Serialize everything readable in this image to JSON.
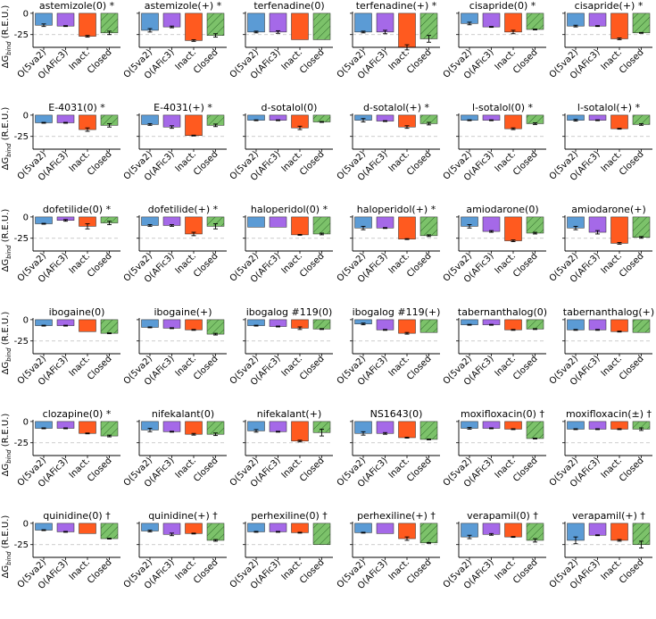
{
  "figure": {
    "ylabel_text": "ΔG",
    "ylabel_sub": "bind",
    "ylabel_units": " (R.E.U.)",
    "yticks": [
      "0",
      "-25"
    ],
    "reference_line_value": -25
  },
  "colors": {
    "O(5va2)": "#5b9bd5",
    "O(AFic3)": "#a569e8",
    "Inact.": "#ff5a1f",
    "Closed": "#7cc26a",
    "hatch": "#2f6a2a",
    "errorbar": "#000000",
    "refline": "#bdbdbd"
  },
  "chart_data": {
    "type": "bar",
    "categories": [
      "O(5va2)",
      "O(AFic3)",
      "Inact.",
      "Closed"
    ],
    "ylim": [
      -40,
      2
    ],
    "yticks": [
      0,
      -25
    ],
    "panels": [
      {
        "title": "astemizole(0) *",
        "values": [
          -14,
          -15,
          -27,
          -23
        ],
        "errors": [
          1.5,
          0.5,
          1,
          2
        ]
      },
      {
        "title": "astemizole(+) *",
        "values": [
          -20,
          -16,
          -32,
          -26
        ],
        "errors": [
          2,
          1,
          1,
          2
        ]
      },
      {
        "title": "terfenadine(0)",
        "values": [
          -22,
          -22,
          -31,
          -31
        ],
        "errors": [
          1,
          1.5,
          0,
          0
        ]
      },
      {
        "title": "terfenadine(+) *",
        "values": [
          -22,
          -22,
          -40,
          -30
        ],
        "errors": [
          1,
          2,
          3,
          4
        ]
      },
      {
        "title": "cisapride(0) *",
        "values": [
          -12,
          -16,
          -22,
          -19
        ],
        "errors": [
          1.5,
          0.5,
          2,
          0.5
        ]
      },
      {
        "title": "cisapride(+) *",
        "values": [
          -15,
          -15,
          -30,
          -23
        ],
        "errors": [
          1,
          0.5,
          1,
          0.5
        ]
      },
      {
        "title": "E-4031(0) *",
        "values": [
          -9,
          -9,
          -17,
          -12
        ],
        "errors": [
          0.5,
          0.5,
          2,
          2
        ]
      },
      {
        "title": "E-4031(+) *",
        "values": [
          -11,
          -14,
          -24,
          -12
        ],
        "errors": [
          1,
          1.5,
          0.5,
          1.5
        ]
      },
      {
        "title": "d-sotalol(0)",
        "values": [
          -6,
          -6,
          -15,
          -8
        ],
        "errors": [
          0.5,
          0.5,
          2,
          0.5
        ]
      },
      {
        "title": "d-sotalol(+) *",
        "values": [
          -6,
          -7,
          -14,
          -10
        ],
        "errors": [
          2,
          0.5,
          1.5,
          1.5
        ]
      },
      {
        "title": "l-sotalol(0) *",
        "values": [
          -6,
          -6,
          -16,
          -10
        ],
        "errors": [
          0.5,
          0.5,
          1,
          1
        ]
      },
      {
        "title": "l-sotalol(+) *",
        "values": [
          -6,
          -6,
          -16,
          -11
        ],
        "errors": [
          1,
          0.5,
          0.5,
          1
        ]
      },
      {
        "title": "dofetilide(0) *",
        "values": [
          -8,
          -4,
          -11,
          -7
        ],
        "errors": [
          0.5,
          1,
          3,
          2
        ]
      },
      {
        "title": "dofetilide(+) *",
        "values": [
          -10,
          -10,
          -20,
          -11
        ],
        "errors": [
          1,
          1,
          2,
          3
        ]
      },
      {
        "title": "haloperidol(0) *",
        "values": [
          -12,
          -12,
          -21,
          -20
        ],
        "errors": [
          0,
          0,
          0.5,
          1
        ]
      },
      {
        "title": "haloperidol(+) *",
        "values": [
          -13,
          -13,
          -26,
          -22
        ],
        "errors": [
          2,
          0.5,
          0.5,
          1
        ]
      },
      {
        "title": "amiodarone(0)",
        "values": [
          -11,
          -17,
          -28,
          -19
        ],
        "errors": [
          2,
          1,
          1,
          1
        ]
      },
      {
        "title": "amiodarone(+)",
        "values": [
          -13,
          -18,
          -31,
          -24
        ],
        "errors": [
          2,
          2,
          1,
          1
        ]
      },
      {
        "title": "ibogaine(0)",
        "values": [
          -7,
          -7,
          -14,
          -16
        ],
        "errors": [
          0.5,
          0.5,
          0,
          0.5
        ]
      },
      {
        "title": "ibogaine(+)",
        "values": [
          -9,
          -10,
          -12,
          -17
        ],
        "errors": [
          0.5,
          0.5,
          0.5,
          1
        ]
      },
      {
        "title": "ibogalog #119(0)",
        "values": [
          -7,
          -8,
          -10,
          -11
        ],
        "errors": [
          0.5,
          0.5,
          1.5,
          0.5
        ]
      },
      {
        "title": "ibogalog #119(+)",
        "values": [
          -5,
          -12,
          -16,
          -15
        ],
        "errors": [
          1,
          0.5,
          1,
          0
        ]
      },
      {
        "title": "tabernanthalog(0)",
        "values": [
          -6,
          -6,
          -12,
          -11
        ],
        "errors": [
          0.5,
          0.5,
          0.5,
          0.5
        ]
      },
      {
        "title": "tabernanthalog(+)",
        "values": [
          -12,
          -12,
          -14,
          -15
        ],
        "errors": [
          0.5,
          0.5,
          0.5,
          0
        ]
      },
      {
        "title": "clozapine(0) *",
        "values": [
          -8,
          -8,
          -14,
          -17
        ],
        "errors": [
          0.5,
          0.5,
          0.5,
          1
        ]
      },
      {
        "title": "nifekalant(0)",
        "values": [
          -10,
          -12,
          -15,
          -15
        ],
        "errors": [
          2,
          0.5,
          1,
          1.5
        ]
      },
      {
        "title": "nifekalant(+)",
        "values": [
          -11,
          -12,
          -23,
          -13
        ],
        "errors": [
          1.5,
          0.5,
          1,
          4
        ]
      },
      {
        "title": "NS1643(0)",
        "values": [
          -14,
          -14,
          -19,
          -21
        ],
        "errors": [
          2,
          1,
          0.5,
          0.5
        ]
      },
      {
        "title": "moxifloxacin(0) †",
        "values": [
          -8,
          -8,
          -9,
          -20
        ],
        "errors": [
          1,
          0.5,
          0.5,
          0.5
        ]
      },
      {
        "title": "moxifloxacin(±) †",
        "values": [
          -9,
          -9,
          -9,
          -9
        ],
        "errors": [
          0.5,
          0.5,
          0.5,
          1.5
        ]
      },
      {
        "title": "quinidine(0) †",
        "values": [
          -8,
          -10,
          -12,
          -18
        ],
        "errors": [
          0.5,
          0.5,
          0,
          0.5
        ]
      },
      {
        "title": "quinidine(+) †",
        "values": [
          -9,
          -13,
          -12,
          -20
        ],
        "errors": [
          1,
          1.5,
          0.5,
          1
        ]
      },
      {
        "title": "perhexiline(0) †",
        "values": [
          -10,
          -10,
          -11,
          -25
        ],
        "errors": [
          0.5,
          0.5,
          0.5,
          0
        ]
      },
      {
        "title": "perhexiline(+) †",
        "values": [
          -11,
          -12,
          -18,
          -23
        ],
        "errors": [
          0.5,
          0,
          2,
          0.5
        ]
      },
      {
        "title": "verapamil(0) †",
        "values": [
          -16,
          -13,
          -16,
          -20
        ],
        "errors": [
          2,
          1,
          0.5,
          2
        ]
      },
      {
        "title": "verapamil(+) †",
        "values": [
          -20,
          -14,
          -20,
          -25
        ],
        "errors": [
          4,
          0.5,
          1,
          4
        ]
      }
    ]
  }
}
